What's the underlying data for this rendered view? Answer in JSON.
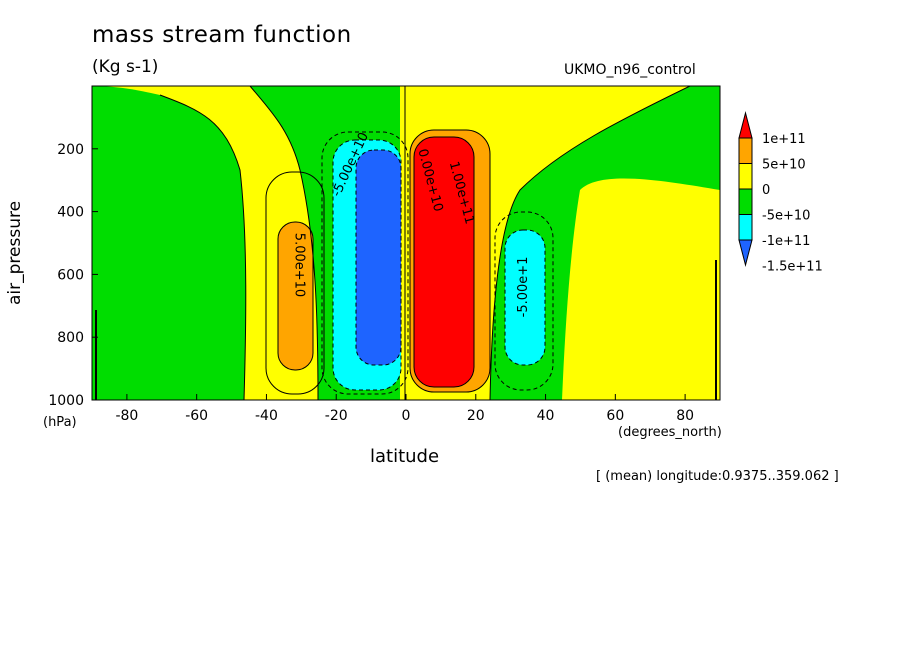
{
  "chart_data": {
    "type": "heatmap",
    "title": "mass stream function",
    "units": "(Kg s-1)",
    "run_label": "UKMO_n96_control",
    "xlabel": "latitude",
    "xunits": "(degrees_north)",
    "ylabel": "air_pressure",
    "yunits": "(hPa)",
    "xlim": [
      -90,
      90
    ],
    "ylim": [
      1000,
      0
    ],
    "x_ticks": [
      -80,
      -60,
      -40,
      -20,
      0,
      20,
      40,
      60,
      80
    ],
    "x_tick_labels": [
      "-80",
      "-60",
      "-40",
      "-20",
      "0",
      "20",
      "40",
      "60",
      "80"
    ],
    "y_ticks": [
      200,
      400,
      600,
      800,
      1000
    ],
    "y_tick_labels": [
      "200",
      "400",
      "600",
      "800",
      "1000"
    ],
    "footer": "[ (mean) longitude:0.9375..359.062 ]",
    "colorbar": {
      "labels": [
        "1e+11",
        "5e+10",
        "0",
        "-5e+10",
        "-1e+11",
        "-1.5e+11"
      ],
      "colors": [
        "#ff0000",
        "#ffa500",
        "#ffff00",
        "#00dd00",
        "#00ffff",
        "#1e64ff"
      ]
    },
    "contour_labels": [
      {
        "text": "5.00e+10"
      },
      {
        "text": "-5.00e+1"
      },
      {
        "text": "1.00e+11"
      },
      {
        "text": "-5.00e+10"
      },
      {
        "text": "0.00e+10"
      }
    ]
  }
}
